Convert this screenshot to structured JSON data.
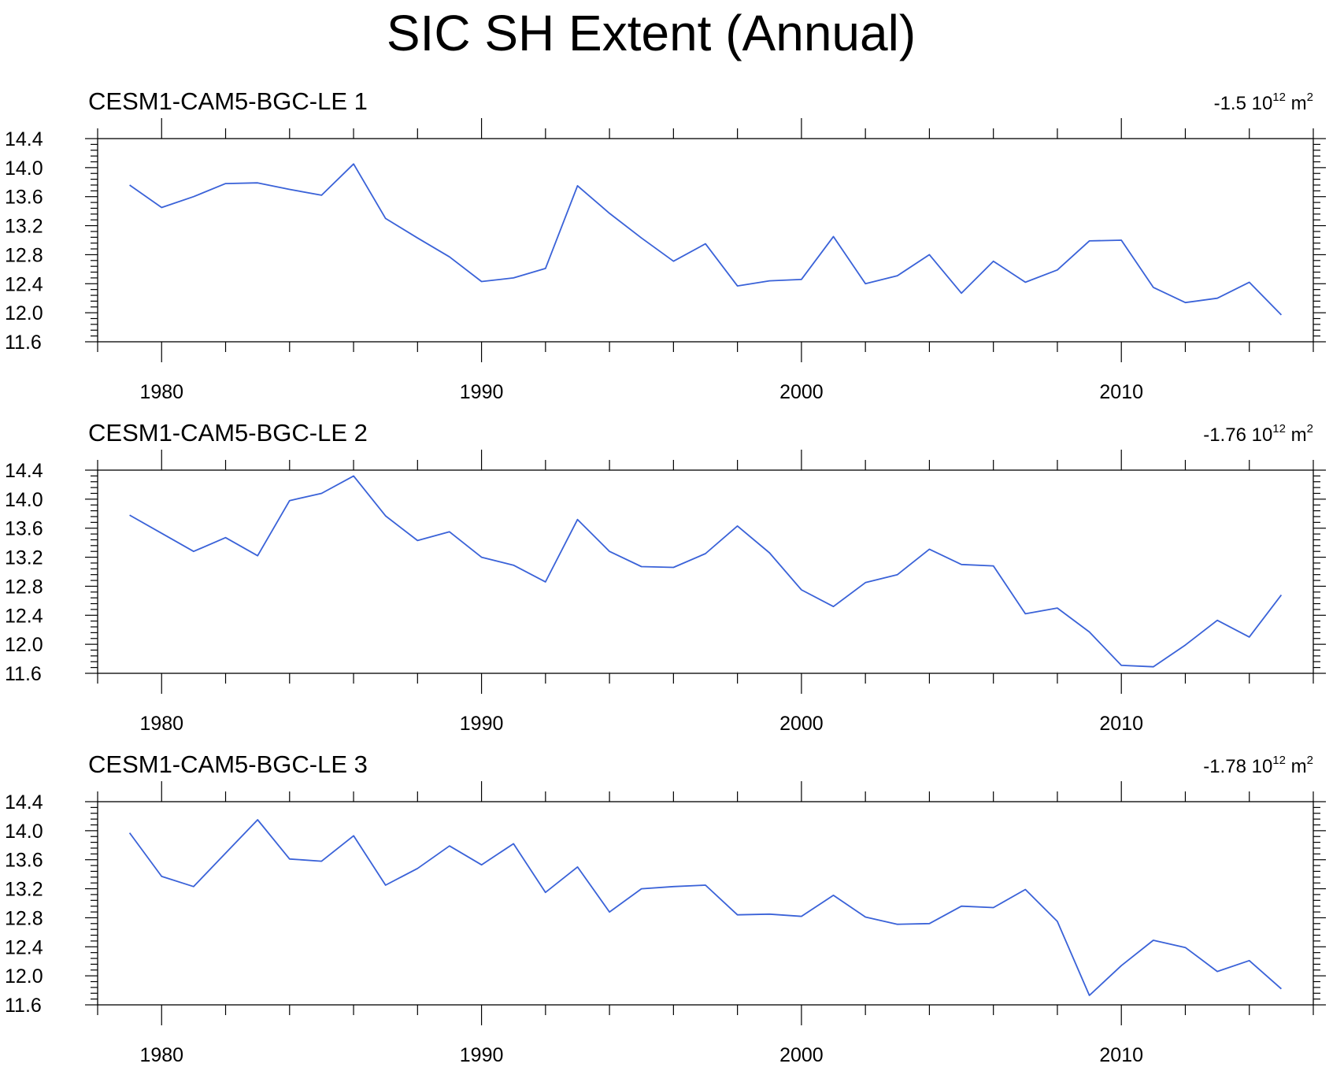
{
  "chart_data": {
    "type": "line",
    "title": "SIC SH Extent (Annual)",
    "x": [
      1979,
      1980,
      1981,
      1982,
      1983,
      1984,
      1985,
      1986,
      1987,
      1988,
      1989,
      1990,
      1991,
      1992,
      1993,
      1994,
      1995,
      1996,
      1997,
      1998,
      1999,
      2000,
      2001,
      2002,
      2003,
      2004,
      2005,
      2006,
      2007,
      2008,
      2009,
      2010,
      2011,
      2012,
      2013,
      2014,
      2015
    ],
    "xlim": [
      1978,
      2016
    ],
    "ylim": [
      11.6,
      14.4
    ],
    "x_major_ticks": [
      1980,
      1990,
      2000,
      2010
    ],
    "x_major_labels": [
      "1980",
      "1990",
      "2000",
      "2010"
    ],
    "y_major_ticks": [
      11.6,
      12.0,
      12.4,
      12.8,
      13.2,
      13.6,
      14.0,
      14.4
    ],
    "y_major_labels": [
      "11.6",
      "12.0",
      "12.4",
      "12.8",
      "13.2",
      "13.6",
      "14.0",
      "14.4"
    ],
    "line_color": "#3a62d8",
    "panels": [
      {
        "name": "CESM1-CAM5-BGC-LE 1",
        "trend_value": "-1.5",
        "trend_base": "10",
        "trend_exp": "12",
        "trend_unit": "m",
        "trend_unit_exp": "2",
        "values": [
          13.76,
          13.45,
          13.6,
          13.78,
          13.79,
          13.7,
          13.62,
          14.05,
          13.3,
          13.03,
          12.77,
          12.43,
          12.48,
          12.61,
          13.75,
          13.37,
          13.03,
          12.71,
          12.95,
          12.37,
          12.44,
          12.46,
          13.05,
          12.4,
          12.51,
          12.8,
          12.27,
          12.71,
          12.42,
          12.59,
          12.99,
          13.0,
          12.35,
          12.14,
          12.2,
          12.42,
          11.97
        ]
      },
      {
        "name": "CESM1-CAM5-BGC-LE 2",
        "trend_value": "-1.76",
        "trend_base": "10",
        "trend_exp": "12",
        "trend_unit": "m",
        "trend_unit_exp": "2",
        "values": [
          13.78,
          13.53,
          13.28,
          13.47,
          13.22,
          13.98,
          14.08,
          14.32,
          13.77,
          13.43,
          13.55,
          13.2,
          13.09,
          12.86,
          13.72,
          13.28,
          13.07,
          13.06,
          13.25,
          13.63,
          13.26,
          12.75,
          12.52,
          12.85,
          12.96,
          13.31,
          13.1,
          13.08,
          12.42,
          12.5,
          12.17,
          11.71,
          11.69,
          11.99,
          12.33,
          12.1,
          12.68
        ]
      },
      {
        "name": "CESM1-CAM5-BGC-LE 3",
        "trend_value": "-1.78",
        "trend_base": "10",
        "trend_exp": "12",
        "trend_unit": "m",
        "trend_unit_exp": "2",
        "values": [
          13.97,
          13.37,
          13.23,
          13.69,
          14.15,
          13.61,
          13.58,
          13.93,
          13.25,
          13.48,
          13.79,
          13.53,
          13.82,
          13.15,
          13.5,
          12.88,
          13.2,
          13.23,
          13.25,
          12.84,
          12.85,
          12.82,
          13.11,
          12.81,
          12.71,
          12.72,
          12.96,
          12.94,
          13.19,
          12.75,
          11.73,
          12.14,
          12.49,
          12.39,
          12.06,
          12.21,
          11.82
        ]
      }
    ]
  }
}
